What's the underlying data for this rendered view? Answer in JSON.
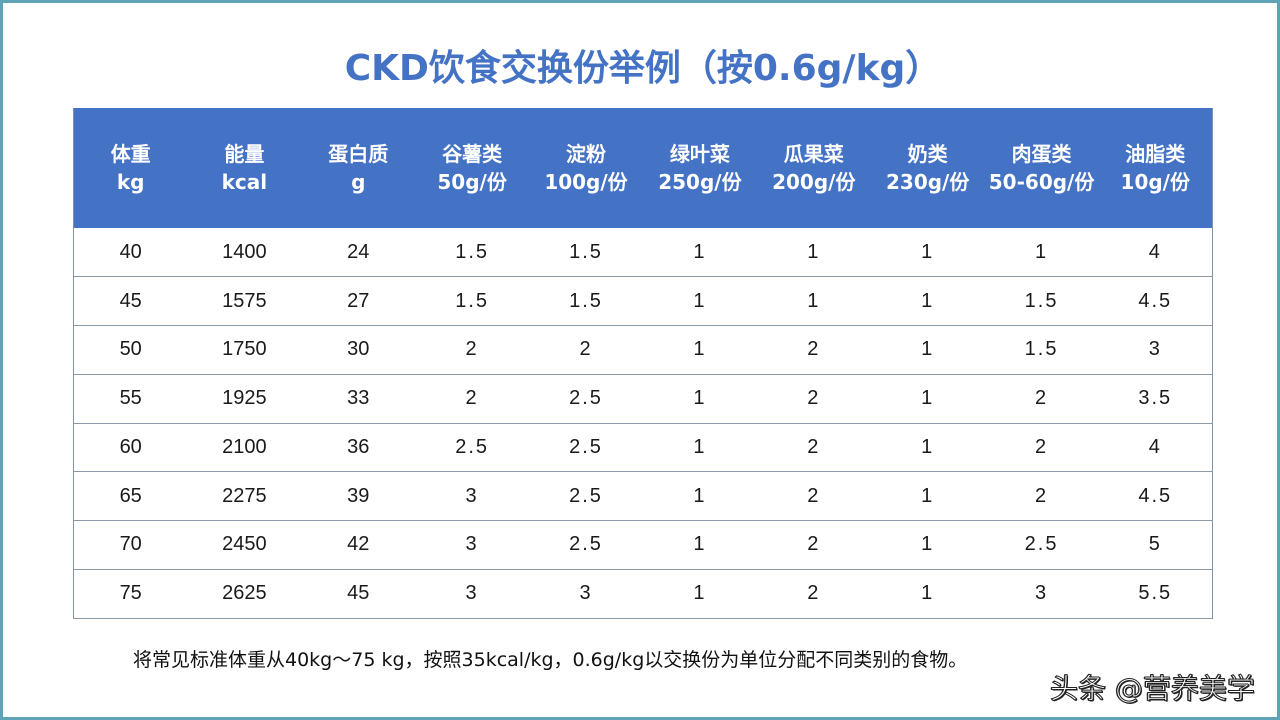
{
  "title": "CKD饮食交换份举例（按0.6g/kg）",
  "table": {
    "columns": [
      {
        "line1": "体重",
        "line2": "kg"
      },
      {
        "line1": "能量",
        "line2": "kcal"
      },
      {
        "line1": "蛋白质",
        "line2": "g"
      },
      {
        "line1": "谷薯类",
        "line2": "50g/份"
      },
      {
        "line1": "淀粉",
        "line2": "100g/份"
      },
      {
        "line1": "绿叶菜",
        "line2": "250g/份"
      },
      {
        "line1": "瓜果菜",
        "line2": "200g/份"
      },
      {
        "line1": "奶类",
        "line2": "230g/份"
      },
      {
        "line1": "肉蛋类",
        "line2": "50-60g/份"
      },
      {
        "line1": "油脂类",
        "line2": "10g/份"
      }
    ],
    "rows": [
      [
        "40",
        "1400",
        "24",
        "1.5",
        "1.5",
        "1",
        "1",
        "1",
        "1",
        "4"
      ],
      [
        "45",
        "1575",
        "27",
        "1.5",
        "1.5",
        "1",
        "1",
        "1",
        "1.5",
        "4.5"
      ],
      [
        "50",
        "1750",
        "30",
        "2",
        "2",
        "1",
        "2",
        "1",
        "1.5",
        "3"
      ],
      [
        "55",
        "1925",
        "33",
        "2",
        "2.5",
        "1",
        "2",
        "1",
        "2",
        "3.5"
      ],
      [
        "60",
        "2100",
        "36",
        "2.5",
        "2.5",
        "1",
        "2",
        "1",
        "2",
        "4"
      ],
      [
        "65",
        "2275",
        "39",
        "3",
        "2.5",
        "1",
        "2",
        "1",
        "2",
        "4.5"
      ],
      [
        "70",
        "2450",
        "42",
        "3",
        "2.5",
        "1",
        "2",
        "1",
        "2.5",
        "5"
      ],
      [
        "75",
        "2625",
        "45",
        "3",
        "3",
        "1",
        "2",
        "1",
        "3",
        "5.5"
      ]
    ]
  },
  "note": "将常见标准体重从40kg～75 kg，按照35kcal/kg，0.6g/kg以交换份为单位分配不同类别的食物。",
  "watermark": "头条 @营养美学",
  "colors": {
    "title": "#4472c4",
    "header_bg": "#4472c4",
    "header_text": "#ffffff",
    "frame_border": "#5fa3b6",
    "row_border": "#8a9aa8"
  }
}
